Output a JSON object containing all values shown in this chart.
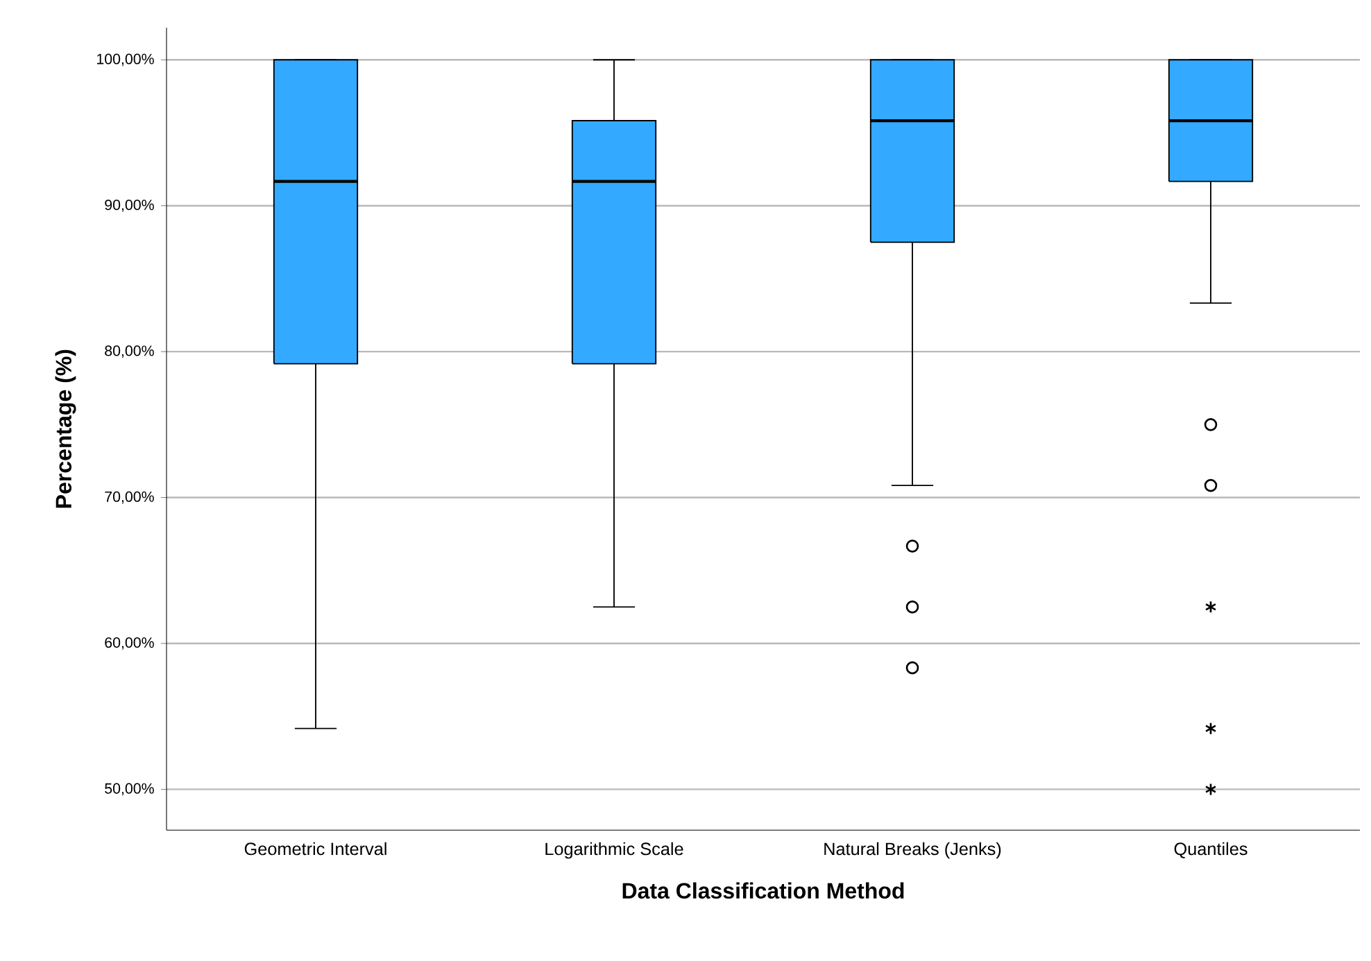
{
  "chart_data": {
    "type": "box",
    "xlabel": "Data Classification Method",
    "ylabel": "Percentage (%)",
    "categories": [
      "Geometric Interval",
      "Logarithmic Scale",
      "Natural Breaks (Jenks)",
      "Quantiles"
    ],
    "color": "#33aaff",
    "boxes": [
      {
        "low": 54.17,
        "q1": 79.17,
        "median": 91.67,
        "q3": 100,
        "high": 100
      },
      {
        "low": 62.5,
        "q1": 79.17,
        "median": 91.67,
        "q3": 95.83,
        "high": 100
      },
      {
        "low": 70.83,
        "q1": 87.5,
        "median": 95.83,
        "q3": 100,
        "high": 100,
        "outliers": [
          66.67,
          62.5,
          58.33
        ]
      },
      {
        "low": 83.33,
        "q1": 91.67,
        "median": 95.83,
        "q3": 100,
        "high": 100,
        "outliers": [
          75,
          70.83,
          62.5,
          54.17,
          50
        ]
      }
    ],
    "ylim": [
      47.2,
      102.2
    ],
    "yticks": [
      {
        "value": 50,
        "label": "50,00%"
      },
      {
        "value": 60,
        "label": "60,00%"
      },
      {
        "value": 70,
        "label": "70,00%"
      },
      {
        "value": 80,
        "label": "80,00%"
      },
      {
        "value": 90,
        "label": "90,00%"
      },
      {
        "value": 100,
        "label": "100,00%"
      }
    ],
    "grid": "y"
  }
}
